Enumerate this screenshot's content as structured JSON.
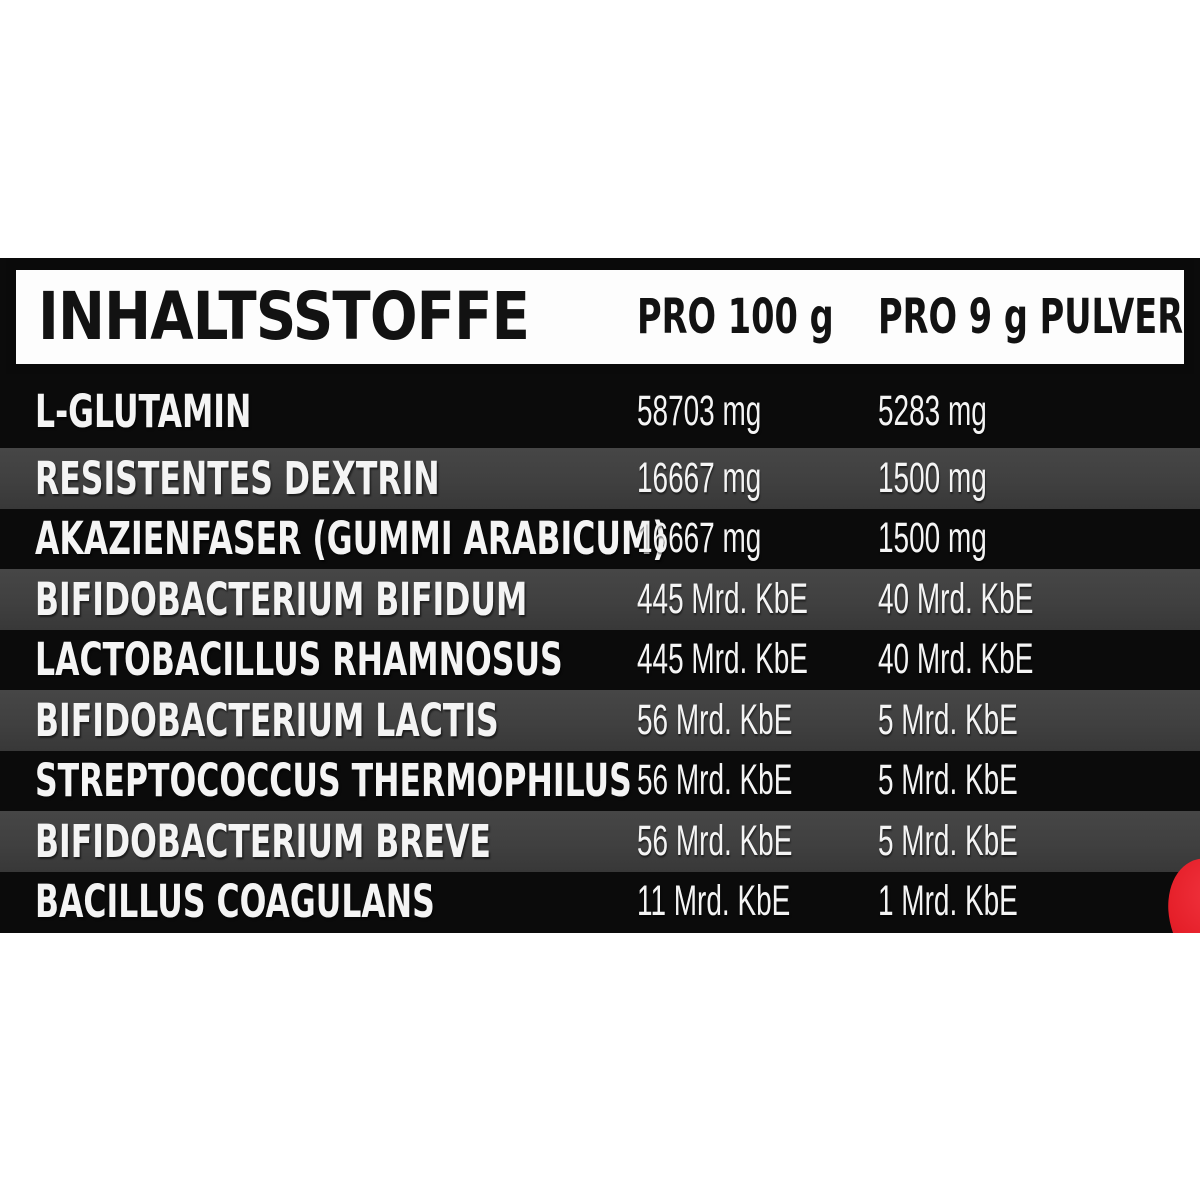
{
  "label": {
    "title": "INHALTSSTOFFE",
    "columns": [
      "PRO 100 g",
      "PRO 9 g PULVER"
    ],
    "rows": [
      {
        "name": "L-GLUTAMIN",
        "per_100g": "58703 mg",
        "per_9g": "5283 mg"
      },
      {
        "name": "RESISTENTES DEXTRIN",
        "per_100g": "16667 mg",
        "per_9g": "1500 mg"
      },
      {
        "name": "AKAZIENFASER (GUMMI ARABICUM)",
        "per_100g": "16667 mg",
        "per_9g": "1500 mg"
      },
      {
        "name": "BIFIDOBACTERIUM BIFIDUM",
        "per_100g": "445 Mrd. KbE",
        "per_9g": "40 Mrd. KbE"
      },
      {
        "name": "LACTOBACILLUS RHAMNOSUS",
        "per_100g": "445 Mrd. KbE",
        "per_9g": "40 Mrd. KbE"
      },
      {
        "name": "BIFIDOBACTERIUM LACTIS",
        "per_100g": "56 Mrd. KbE",
        "per_9g": "5 Mrd. KbE"
      },
      {
        "name": "STREPTOCOCCUS THERMOPHILUS",
        "per_100g": "56 Mrd. KbE",
        "per_9g": "5 Mrd. KbE"
      },
      {
        "name": "BIFIDOBACTERIUM BREVE",
        "per_100g": "56 Mrd. KbE",
        "per_9g": "5 Mrd. KbE"
      },
      {
        "name": "BACILLUS COAGULANS",
        "per_100g": "11 Mrd. KbE",
        "per_9g": "1 Mrd. KbE"
      }
    ],
    "colors": {
      "row_dark": "#0b0b0b",
      "row_gray": "#414141",
      "header_bg": "#fdfdfd",
      "header_text": "#121212",
      "row_text": "#f4f4f4",
      "accent_red": "#e51f29"
    }
  }
}
